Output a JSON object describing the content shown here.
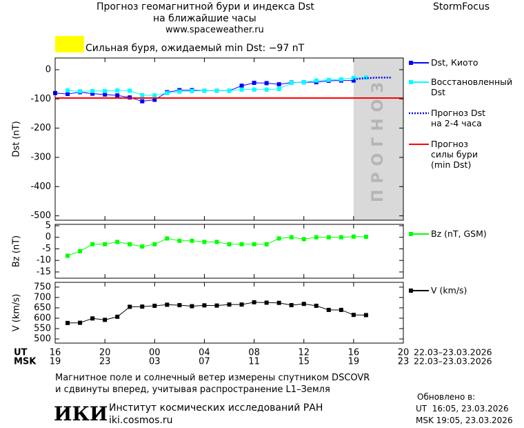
{
  "header": {
    "title": "Прогноз геомагнитной бури и индекса Dst",
    "subtitle": "на ближайшие часы",
    "site": "www.spaceweather.ru",
    "brand": "StormFocus",
    "alert": "Сильная буря, ожидаемый min Dst: −97 nT"
  },
  "chart_data": [
    {
      "type": "line",
      "ylabel": "Dst (nT)",
      "xlim": [
        0,
        28
      ],
      "ylim": [
        -515,
        40
      ],
      "yticks": [
        0,
        -100,
        -200,
        -300,
        -400,
        -500
      ],
      "forecast_region": [
        24,
        28
      ],
      "forecast_label": "ПРОГНОЗ",
      "series": [
        {
          "name": "Dst, Киото",
          "color": "#0000ff",
          "marker": "square",
          "style": "solid",
          "x": [
            0,
            1,
            2,
            3,
            4,
            5,
            6,
            7,
            8,
            9,
            10,
            11,
            12,
            13,
            14,
            15,
            16,
            17,
            18,
            19,
            20,
            21,
            22,
            23,
            24
          ],
          "values": [
            -80,
            -83,
            -77,
            -82,
            -85,
            -88,
            -95,
            -108,
            -103,
            -77,
            -70,
            -70,
            -72,
            -72,
            -72,
            -55,
            -45,
            -46,
            -50,
            -44,
            -43,
            -43,
            -38,
            -37,
            -37
          ]
        },
        {
          "name": "Восстановленный\nDst",
          "color": "#00ffff",
          "marker": "square",
          "style": "solid",
          "x": [
            1,
            2,
            3,
            4,
            5,
            6,
            7,
            8,
            9,
            10,
            11,
            12,
            13,
            14,
            15,
            16,
            17,
            18,
            19,
            20,
            21,
            22,
            23,
            24,
            25
          ],
          "values": [
            -71,
            -74,
            -73,
            -73,
            -71,
            -72,
            -87,
            -88,
            -80,
            -75,
            -73,
            -72,
            -72,
            -72,
            -68,
            -68,
            -68,
            -66,
            -45,
            -43,
            -37,
            -35,
            -33,
            -28,
            -27
          ]
        },
        {
          "name": "Прогноз Dst\nна 2-4 часа",
          "color": "#0000ff",
          "marker": "none",
          "style": "dotted",
          "x": [
            24,
            25,
            26,
            27
          ],
          "values": [
            -33,
            -29,
            -27,
            -27
          ]
        },
        {
          "name": "Прогноз\nсилы бури\n(min Dst)",
          "color": "#ff0000",
          "marker": "none",
          "style": "solid",
          "x": [
            0,
            28
          ],
          "values": [
            -97,
            -97
          ]
        }
      ]
    },
    {
      "type": "line",
      "ylabel": "Bz (nT)",
      "xlim": [
        0,
        28
      ],
      "ylim": [
        -17.7,
        5.6
      ],
      "yticks": [
        5,
        0,
        -5,
        -10,
        -15
      ],
      "series": [
        {
          "name": "Bz (nT, GSM)",
          "color": "#00ff00",
          "marker": "square",
          "style": "solid",
          "x": [
            1,
            2,
            3,
            4,
            5,
            6,
            7,
            8,
            9,
            10,
            11,
            12,
            13,
            14,
            15,
            16,
            17,
            18,
            19,
            20,
            21,
            22,
            23,
            24,
            25
          ],
          "values": [
            -8,
            -6,
            -3,
            -3,
            -2,
            -3,
            -4,
            -3,
            -0.5,
            -1.5,
            -1.5,
            -2,
            -2,
            -3,
            -3,
            -3,
            -3,
            -0.5,
            0,
            -0.8,
            0,
            0,
            0,
            0.3,
            0.2
          ]
        }
      ]
    },
    {
      "type": "line",
      "ylabel": "V (km/s)",
      "xlim": [
        0,
        28
      ],
      "ylim": [
        480,
        773
      ],
      "yticks": [
        750,
        700,
        650,
        600,
        550,
        500
      ],
      "xticks": [
        {
          "value": 0,
          "label": "16"
        },
        {
          "value": 4,
          "label": "20"
        },
        {
          "value": 8,
          "label": "00"
        },
        {
          "value": 12,
          "label": "04"
        },
        {
          "value": 16,
          "label": "08"
        },
        {
          "value": 20,
          "label": "12"
        },
        {
          "value": 24,
          "label": "16"
        },
        {
          "value": 28,
          "label": "20"
        }
      ],
      "msk_ticks": [
        {
          "value": 0,
          "label": "19"
        },
        {
          "value": 4,
          "label": "23"
        },
        {
          "value": 8,
          "label": "03"
        },
        {
          "value": 12,
          "label": "07"
        },
        {
          "value": 16,
          "label": "11"
        },
        {
          "value": 20,
          "label": "15"
        },
        {
          "value": 24,
          "label": "19"
        },
        {
          "value": 28,
          "label": "23"
        }
      ],
      "ut_label": "UT",
      "msk_label": "MSK",
      "ut_range": "22.03–23.03.2026",
      "msk_range": "22.03–23.03.2026",
      "series": [
        {
          "name": "V (km/s)",
          "color": "#000000",
          "marker": "square",
          "style": "solid",
          "x": [
            1,
            2,
            3,
            4,
            5,
            6,
            7,
            8,
            9,
            10,
            11,
            12,
            13,
            14,
            15,
            16,
            17,
            18,
            19,
            20,
            21,
            22,
            23,
            24,
            25
          ],
          "values": [
            577,
            578,
            599,
            592,
            607,
            655,
            656,
            660,
            665,
            663,
            658,
            662,
            661,
            666,
            666,
            677,
            675,
            674,
            663,
            669,
            660,
            640,
            640,
            616,
            615
          ]
        }
      ]
    }
  ],
  "footer": {
    "note1": "Магнитное поле и солнечный ветер измерены спутником DSCOVR",
    "note2": "и сдвинуты вперед, учитывая распространение L1–Земля",
    "logo": "ИКИ",
    "institute": "Институт космических исследований РАН",
    "url": "iki.cosmos.ru",
    "updated": "Обновлено в:",
    "updated_ut": "UT  16:05, 23.03.2026",
    "updated_msk": "MSK 19:05, 23.03.2026"
  }
}
